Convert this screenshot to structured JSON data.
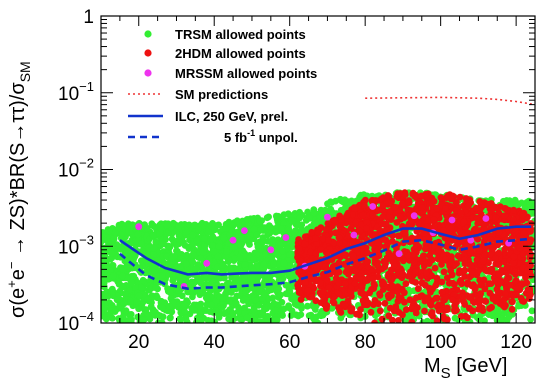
{
  "chart_data": {
    "type": "scatter",
    "xlabel": "M_S [GeV]",
    "ylabel": "σ(e+e− → ZS)*BR(S→ττ)/σ_SM",
    "xlim": [
      10,
      125
    ],
    "ylim": [
      0.0001,
      1
    ],
    "yscale": "log",
    "x_ticks": [
      20,
      40,
      60,
      80,
      100,
      120
    ],
    "y_ticks": [
      {
        "value": 0.0001,
        "base": "10",
        "exp": "−4"
      },
      {
        "value": 0.001,
        "base": "10",
        "exp": "−3"
      },
      {
        "value": 0.01,
        "base": "10",
        "exp": "−2"
      },
      {
        "value": 0.1,
        "base": "10",
        "exp": "−1"
      },
      {
        "value": 1,
        "base": "1",
        "exp": ""
      }
    ],
    "legend": {
      "placement": "top-left",
      "entries": [
        {
          "label": "TRSM allowed points",
          "marker": "dot",
          "color": "#33ee33"
        },
        {
          "label": "2HDM allowed points",
          "marker": "dot",
          "color": "#ee1111"
        },
        {
          "label": "MRSSM allowed points",
          "marker": "dot",
          "color": "#ee33ee"
        },
        {
          "label": "SM predictions",
          "marker": "dotted-line",
          "color": "#ee3333"
        },
        {
          "label": "ILC, 250 GeV, prel.",
          "marker": "solid-line",
          "color": "#1133cc"
        },
        {
          "label": "5 fb",
          "sup": "-1",
          "label_end": " unpol.",
          "marker": "dashed-line",
          "color": "#1133cc"
        }
      ]
    },
    "series": [
      {
        "name": "TRSM allowed points",
        "kind": "scatter-region",
        "color": "#33ee33",
        "x": [
          10,
          15,
          25,
          40,
          55,
          65,
          75,
          85,
          95,
          105,
          115,
          125
        ],
        "y_low": [
          0.0001,
          0.0001,
          0.0001,
          0.0001,
          0.0001,
          0.0001,
          0.0001,
          0.0001,
          0.0001,
          0.0001,
          0.0001,
          0.0001
        ],
        "y_high": [
          0.0015,
          0.002,
          0.002,
          0.002,
          0.0025,
          0.003,
          0.0045,
          0.005,
          0.005,
          0.0045,
          0.004,
          0.004
        ]
      },
      {
        "name": "2HDM allowed points",
        "kind": "scatter-region",
        "color": "#ee1111",
        "x": [
          62,
          70,
          80,
          90,
          100,
          110,
          120,
          124
        ],
        "y_low": [
          0.0002,
          0.00015,
          0.0001,
          0.0001,
          0.0001,
          0.00012,
          0.00015,
          0.0002
        ],
        "y_high": [
          0.0012,
          0.002,
          0.004,
          0.005,
          0.005,
          0.004,
          0.003,
          0.0025
        ]
      },
      {
        "name": "MRSSM allowed points",
        "kind": "scatter",
        "color": "#ee33ee",
        "x": [
          20,
          32,
          38,
          45,
          48,
          55,
          59,
          64,
          70,
          77,
          82,
          89,
          93,
          98,
          103,
          108,
          112,
          118
        ],
        "y": [
          0.0018,
          0.0003,
          0.0006,
          0.0012,
          0.0016,
          0.0009,
          0.0013,
          0.00055,
          0.0024,
          0.0014,
          0.0033,
          0.0008,
          0.0025,
          0.0015,
          0.0022,
          0.0012,
          0.0023,
          0.0011
        ]
      },
      {
        "name": "SM predictions",
        "kind": "line",
        "style": "dotted",
        "color": "#ee3333",
        "x": [
          80,
          90,
          100,
          110,
          115,
          120,
          125
        ],
        "y": [
          0.085,
          0.086,
          0.087,
          0.085,
          0.082,
          0.077,
          0.07
        ]
      },
      {
        "name": "ILC, 250 GeV, prel.",
        "kind": "line",
        "style": "solid",
        "color": "#1133cc",
        "x": [
          15,
          18,
          22,
          27,
          33,
          38,
          42,
          46,
          50,
          55,
          60,
          65,
          70,
          75,
          80,
          85,
          90,
          95,
          100,
          105,
          110,
          115,
          120,
          124
        ],
        "y": [
          0.0012,
          0.00095,
          0.0007,
          0.00052,
          0.00043,
          0.00045,
          0.00043,
          0.00044,
          0.00045,
          0.00045,
          0.00048,
          0.00058,
          0.0007,
          0.00092,
          0.0011,
          0.0014,
          0.0017,
          0.0017,
          0.00145,
          0.00125,
          0.0014,
          0.0017,
          0.0018,
          0.0018
        ]
      },
      {
        "name": "5 fb-1 unpol.",
        "kind": "line",
        "style": "dashed",
        "color": "#1133cc",
        "x": [
          15,
          18,
          22,
          27,
          33,
          38,
          42,
          46,
          50,
          55,
          60,
          65,
          70,
          75,
          80,
          85,
          90,
          95,
          100,
          105,
          110,
          115,
          120,
          124
        ],
        "y": [
          0.0008,
          0.0006,
          0.00042,
          0.00032,
          0.00028,
          0.00029,
          0.00029,
          0.0003,
          0.00031,
          0.00032,
          0.00034,
          0.0004,
          0.00046,
          0.00058,
          0.0007,
          0.00088,
          0.00115,
          0.0012,
          0.00105,
          0.0009,
          0.001,
          0.00115,
          0.0012,
          0.00125
        ]
      }
    ]
  }
}
